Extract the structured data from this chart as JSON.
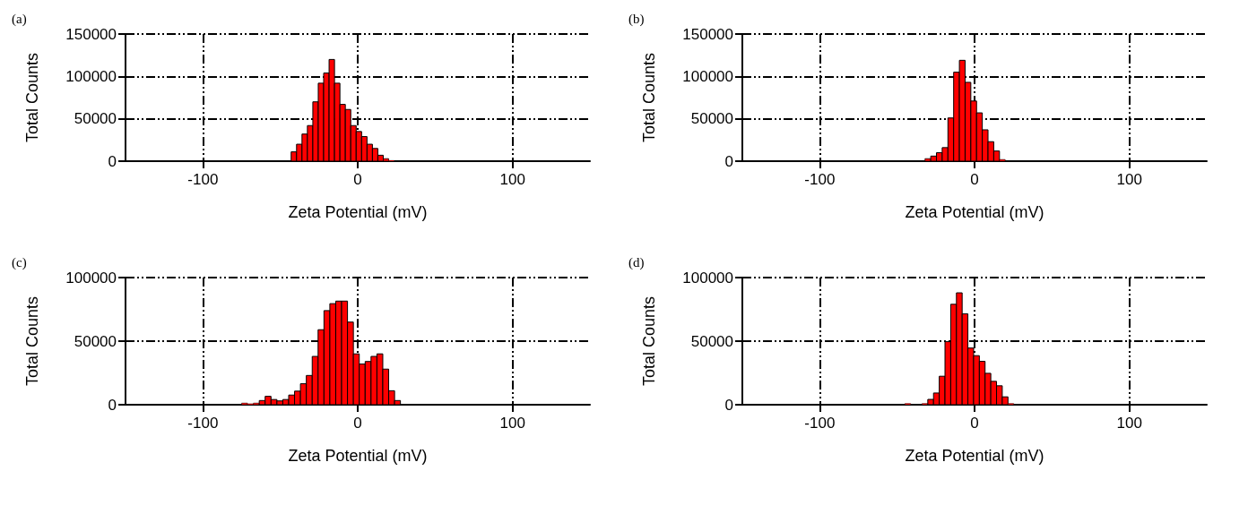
{
  "chart_data": [
    {
      "type": "histogram",
      "title": "(a)",
      "xlabel": "Zeta Potential (mV)",
      "ylabel": "Total Counts",
      "color": "#ff0000",
      "grid": true,
      "xlim": [
        -150,
        150
      ],
      "xticks": [
        -100,
        0,
        100
      ],
      "ylim": [
        0,
        150000
      ],
      "yticks": [
        0,
        50000,
        100000,
        150000
      ],
      "bins": [
        -43,
        -39.5,
        -36,
        -32.5,
        -29,
        -25.5,
        -22,
        -18.5,
        -15,
        -11.5,
        -8,
        -4.5,
        -1,
        2.5,
        6,
        9.5,
        13,
        16.5,
        20,
        23.5
      ],
      "values": [
        11000,
        20000,
        32000,
        42000,
        70000,
        92000,
        104000,
        120000,
        92000,
        67000,
        61000,
        42000,
        35000,
        29000,
        20000,
        15000,
        7000,
        3000,
        1000
      ]
    },
    {
      "type": "histogram",
      "title": "(b)",
      "xlabel": "Zeta Potential (mV)",
      "ylabel": "Total Counts",
      "color": "#ff0000",
      "grid": true,
      "xlim": [
        -150,
        150
      ],
      "xticks": [
        -100,
        0,
        100
      ],
      "ylim": [
        0,
        150000
      ],
      "yticks": [
        0,
        50000,
        100000,
        150000
      ],
      "bins": [
        -32,
        -28.3,
        -24.6,
        -20.9,
        -17.2,
        -13.5,
        -9.8,
        -6.1,
        -2.4,
        1.3,
        5,
        8.7,
        12.4,
        16.1,
        19.8
      ],
      "values": [
        3000,
        6000,
        10000,
        16000,
        51000,
        105000,
        119000,
        93000,
        71000,
        57000,
        37000,
        23000,
        12000,
        2000
      ]
    },
    {
      "type": "histogram",
      "title": "(c)",
      "xlabel": "Zeta Potential (mV)",
      "ylabel": "Total Counts",
      "color": "#ff0000",
      "grid": true,
      "xlim": [
        -150,
        150
      ],
      "xticks": [
        -100,
        0,
        100
      ],
      "ylim": [
        0,
        100000
      ],
      "yticks": [
        0,
        50000,
        100000
      ],
      "bins": [
        -75,
        -71.2,
        -67.4,
        -63.6,
        -59.8,
        -56,
        -52.2,
        -48.4,
        -44.6,
        -40.8,
        -37,
        -33.2,
        -29.4,
        -25.6,
        -21.8,
        -18,
        -14.2,
        -10.4,
        -6.6,
        -2.8,
        1,
        4.8,
        8.6,
        12.4,
        16.2,
        20,
        23.8,
        27.6
      ],
      "values": [
        1300,
        800,
        1300,
        3300,
        6600,
        4100,
        3000,
        4100,
        7600,
        10700,
        16500,
        23000,
        38000,
        59000,
        74000,
        79500,
        81500,
        81500,
        65000,
        40000,
        32000,
        34000,
        38000,
        40000,
        28000,
        11000,
        3300
      ]
    },
    {
      "type": "histogram",
      "title": "(d)",
      "xlabel": "Zeta Potential (mV)",
      "ylabel": "Total Counts",
      "color": "#ff0000",
      "grid": true,
      "xlim": [
        -150,
        150
      ],
      "xticks": [
        -100,
        0,
        100
      ],
      "ylim": [
        0,
        100000
      ],
      "yticks": [
        0,
        50000,
        100000
      ],
      "bins": [
        -45,
        -41.3,
        -37.6,
        -33.9,
        -30.2,
        -26.5,
        -22.8,
        -19.1,
        -15.4,
        -11.7,
        -8,
        -4.3,
        -0.6,
        3.1,
        6.8,
        10.5,
        14.2,
        17.9,
        21.6,
        25.3
      ],
      "values": [
        1000,
        0,
        0,
        1000,
        4200,
        9200,
        22400,
        49600,
        79000,
        88000,
        71500,
        44600,
        38600,
        34100,
        24700,
        18400,
        14900,
        6200,
        1000
      ]
    }
  ]
}
